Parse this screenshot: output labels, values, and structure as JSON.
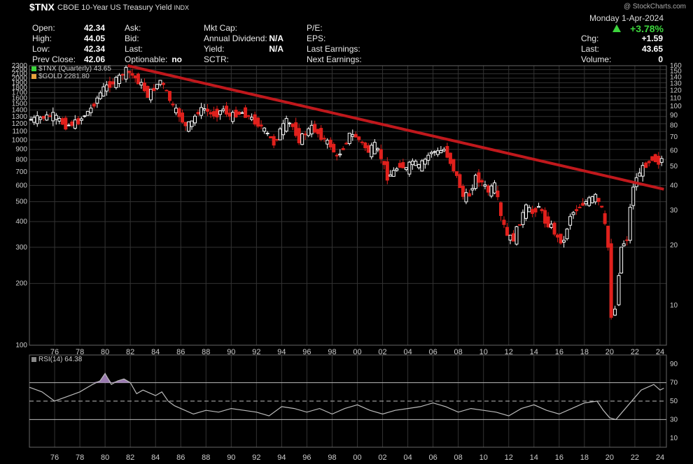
{
  "header": {
    "symbol": "$TNX",
    "description": "CBOE 10-Year US Treasury Yield",
    "exchange": "INDX",
    "watermark": "@ StockCharts.com",
    "date": "Monday  1-Apr-2024",
    "change_pct": "+3.78%",
    "quote_col1": [
      {
        "label": "Open:",
        "value": "42.34"
      },
      {
        "label": "High:",
        "value": "44.05"
      },
      {
        "label": "Low:",
        "value": "42.34"
      },
      {
        "label": "Prev Close:",
        "value": "42.06"
      }
    ],
    "quote_col2": [
      {
        "label": "Ask:",
        "value": ""
      },
      {
        "label": "Bid:",
        "value": ""
      },
      {
        "label": "Last:",
        "value": ""
      },
      {
        "label": "Optionable:",
        "value": "no"
      }
    ],
    "quote_col3": [
      {
        "label": "Mkt Cap:",
        "value": ""
      },
      {
        "label": "Annual Dividend:",
        "value": "N/A"
      },
      {
        "label": "Yield:",
        "value": "N/A"
      },
      {
        "label": "SCTR:",
        "value": ""
      }
    ],
    "quote_col4": [
      {
        "label": "P/E:",
        "value": ""
      },
      {
        "label": "EPS:",
        "value": ""
      },
      {
        "label": "Last Earnings:",
        "value": ""
      },
      {
        "label": "Next Earnings:",
        "value": ""
      }
    ],
    "quote_col5": [
      {
        "label": "Chg:",
        "value": "+1.59"
      },
      {
        "label": "Last:",
        "value": "43.65"
      },
      {
        "label": "Volume:",
        "value": "0"
      }
    ]
  },
  "legend": {
    "main1": "$TNX (Quarterly) 43.65",
    "main2": "$GOLD 2281.80",
    "rsi": "RSI(14) 64.38"
  },
  "colors": {
    "up": "#ffffff",
    "down": "#e0201c",
    "trend": "#c0181c",
    "gold_line": "#ffffff",
    "rsi_line": "#bbbbbb",
    "rsi_fill": "#9a7ab0",
    "grid": "#333333"
  },
  "chart_data": [
    {
      "type": "candlestick",
      "series": [
        {
          "name": "$TNX (Quarterly)",
          "last": 43.65
        },
        {
          "name": "$GOLD",
          "last": 2281.8
        }
      ],
      "left_axis": {
        "scale": "log",
        "ylim": [
          100,
          2300
        ],
        "ticks": [
          2300,
          2200,
          2100,
          2000,
          1900,
          1800,
          1700,
          1600,
          1500,
          1400,
          1300,
          1200,
          1100,
          1000,
          900,
          800,
          700,
          600,
          500,
          400,
          300,
          200,
          100
        ]
      },
      "right_axis": {
        "scale": "log",
        "ylim": [
          6.3,
          160
        ],
        "ticks": [
          160,
          150,
          140,
          130,
          120,
          110,
          100,
          90,
          80,
          70,
          60,
          50,
          40,
          30,
          20,
          10
        ]
      },
      "x_ticks": [
        "76",
        "78",
        "80",
        "82",
        "84",
        "86",
        "88",
        "90",
        "92",
        "94",
        "96",
        "98",
        "00",
        "02",
        "04",
        "06",
        "08",
        "10",
        "12",
        "14",
        "16",
        "18",
        "20",
        "22",
        "24"
      ],
      "x_range": [
        1974,
        2024.5
      ],
      "trendline": {
        "from": [
          1981.8,
          2300
        ],
        "to": [
          2024.3,
          575
        ],
        "axis": "left"
      },
      "gold_quarterly_close": [
        [
          1974.0,
          1250
        ],
        [
          1975.0,
          1280
        ],
        [
          1976.0,
          1320
        ],
        [
          1977.0,
          1170
        ],
        [
          1978.0,
          1230
        ],
        [
          1979.0,
          1420
        ],
        [
          1980.0,
          1780
        ],
        [
          1981.0,
          1950
        ],
        [
          1981.8,
          2180
        ],
        [
          1982.5,
          2000
        ],
        [
          1983.0,
          1860
        ],
        [
          1983.5,
          1650
        ],
        [
          1984.0,
          1780
        ],
        [
          1984.5,
          1950
        ],
        [
          1985.0,
          1700
        ],
        [
          1985.5,
          1440
        ],
        [
          1986.0,
          1320
        ],
        [
          1986.5,
          1160
        ],
        [
          1987.0,
          1220
        ],
        [
          1987.5,
          1380
        ],
        [
          1988.0,
          1420
        ],
        [
          1988.5,
          1330
        ],
        [
          1989.0,
          1340
        ],
        [
          1989.5,
          1420
        ],
        [
          1990.0,
          1300
        ],
        [
          1990.5,
          1340
        ],
        [
          1991.0,
          1360
        ],
        [
          1991.5,
          1300
        ],
        [
          1992.0,
          1230
        ],
        [
          1992.5,
          1160
        ],
        [
          1993.0,
          1060
        ],
        [
          1993.5,
          960
        ],
        [
          1994.0,
          1110
        ],
        [
          1994.5,
          1230
        ],
        [
          1995.0,
          1160
        ],
        [
          1995.5,
          1000
        ],
        [
          1996.0,
          1080
        ],
        [
          1996.5,
          1150
        ],
        [
          1997.0,
          1080
        ],
        [
          1997.5,
          1000
        ],
        [
          1998.0,
          940
        ],
        [
          1998.5,
          820
        ],
        [
          1999.0,
          920
        ],
        [
          1999.5,
          1060
        ],
        [
          2000.0,
          1040
        ],
        [
          2000.5,
          960
        ],
        [
          2001.0,
          880
        ],
        [
          2001.5,
          940
        ],
        [
          2002.0,
          820
        ],
        [
          2002.5,
          660
        ],
        [
          2003.0,
          700
        ],
        [
          2003.5,
          760
        ],
        [
          2004.0,
          720
        ],
        [
          2004.5,
          790
        ],
        [
          2005.0,
          740
        ],
        [
          2005.5,
          800
        ],
        [
          2006.0,
          880
        ],
        [
          2006.5,
          870
        ],
        [
          2007.0,
          900
        ],
        [
          2007.5,
          780
        ],
        [
          2008.0,
          660
        ],
        [
          2008.5,
          530
        ],
        [
          2009.0,
          540
        ],
        [
          2009.5,
          660
        ],
        [
          2010.0,
          620
        ],
        [
          2010.5,
          560
        ],
        [
          2011.0,
          600
        ],
        [
          2011.5,
          420
        ],
        [
          2012.0,
          340
        ],
        [
          2012.5,
          330
        ],
        [
          2013.0,
          400
        ],
        [
          2013.5,
          470
        ],
        [
          2014.0,
          440
        ],
        [
          2014.5,
          480
        ],
        [
          2015.0,
          400
        ],
        [
          2015.5,
          380
        ],
        [
          2016.0,
          330
        ],
        [
          2016.5,
          320
        ],
        [
          2017.0,
          430
        ],
        [
          2017.5,
          460
        ],
        [
          2018.0,
          490
        ],
        [
          2018.5,
          510
        ],
        [
          2019.0,
          530
        ],
        [
          2019.5,
          460
        ],
        [
          2020.0,
          300
        ],
        [
          2020.3,
          140
        ],
        [
          2020.6,
          150
        ],
        [
          2021.0,
          300
        ],
        [
          2021.5,
          330
        ],
        [
          2022.0,
          600
        ],
        [
          2022.5,
          700
        ],
        [
          2023.0,
          760
        ],
        [
          2023.5,
          820
        ],
        [
          2024.0,
          780
        ],
        [
          2024.3,
          810
        ]
      ]
    },
    {
      "type": "line",
      "series": [
        {
          "name": "RSI(14)",
          "last": 64.38
        }
      ],
      "ylim": [
        0,
        100
      ],
      "ticks": [
        90,
        70,
        50,
        30,
        10
      ],
      "reference_lines": [
        70,
        50,
        30
      ],
      "values": [
        [
          1974.0,
          65
        ],
        [
          1975.0,
          60
        ],
        [
          1976.0,
          50
        ],
        [
          1977.0,
          55
        ],
        [
          1978.0,
          60
        ],
        [
          1979.0,
          68
        ],
        [
          1979.6,
          72
        ],
        [
          1980.0,
          80
        ],
        [
          1980.5,
          68
        ],
        [
          1981.0,
          72
        ],
        [
          1981.5,
          74
        ],
        [
          1982.0,
          70
        ],
        [
          1982.5,
          58
        ],
        [
          1983.0,
          62
        ],
        [
          1984.0,
          56
        ],
        [
          1984.5,
          60
        ],
        [
          1985.0,
          50
        ],
        [
          1985.5,
          45
        ],
        [
          1986.0,
          42
        ],
        [
          1987.0,
          36
        ],
        [
          1988.0,
          40
        ],
        [
          1989.0,
          38
        ],
        [
          1990.0,
          42
        ],
        [
          1991.0,
          40
        ],
        [
          1992.0,
          38
        ],
        [
          1993.0,
          34
        ],
        [
          1994.0,
          44
        ],
        [
          1995.0,
          42
        ],
        [
          1996.0,
          38
        ],
        [
          1997.0,
          42
        ],
        [
          1998.0,
          36
        ],
        [
          1999.0,
          42
        ],
        [
          2000.0,
          46
        ],
        [
          2001.0,
          40
        ],
        [
          2002.0,
          36
        ],
        [
          2003.0,
          40
        ],
        [
          2004.0,
          42
        ],
        [
          2005.0,
          44
        ],
        [
          2006.0,
          48
        ],
        [
          2007.0,
          44
        ],
        [
          2008.0,
          38
        ],
        [
          2009.0,
          42
        ],
        [
          2010.0,
          40
        ],
        [
          2011.0,
          38
        ],
        [
          2012.0,
          34
        ],
        [
          2013.0,
          42
        ],
        [
          2014.0,
          46
        ],
        [
          2015.0,
          40
        ],
        [
          2016.0,
          36
        ],
        [
          2017.0,
          42
        ],
        [
          2018.0,
          48
        ],
        [
          2019.0,
          50
        ],
        [
          2019.5,
          40
        ],
        [
          2020.0,
          32
        ],
        [
          2020.5,
          30
        ],
        [
          2021.0,
          38
        ],
        [
          2022.0,
          54
        ],
        [
          2022.5,
          62
        ],
        [
          2023.0,
          65
        ],
        [
          2023.5,
          68
        ],
        [
          2024.0,
          62
        ],
        [
          2024.3,
          64
        ]
      ]
    }
  ]
}
